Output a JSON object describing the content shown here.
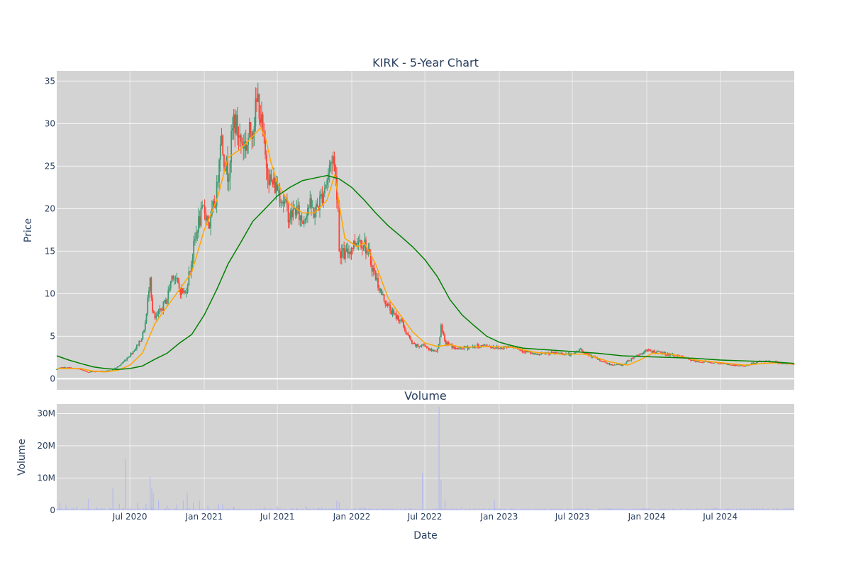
{
  "chart_data": [
    {
      "type": "candlestick",
      "title": "KIRK - 5-Year Chart",
      "ylabel": "Price",
      "xlabel": "",
      "ylim": [
        -1.3,
        36.2
      ],
      "yticks": [
        0,
        5,
        10,
        15,
        20,
        25,
        30,
        35
      ],
      "xlim": [
        "2020-01-02",
        "2024-12-31"
      ],
      "colors": {
        "up": "#3d9970",
        "down": "#ff4136",
        "ma_short": "#ffa500",
        "ma_long": "#008000",
        "plot_bg": "#d3d3d3",
        "grid": "#ebebeb"
      },
      "price_path": [
        [
          "2020-01-02",
          1.1
        ],
        [
          "2020-01-15",
          1.3
        ],
        [
          "2020-02-01",
          1.3
        ],
        [
          "2020-02-15",
          1.2
        ],
        [
          "2020-03-01",
          1.1
        ],
        [
          "2020-03-15",
          0.8
        ],
        [
          "2020-04-01",
          0.85
        ],
        [
          "2020-04-15",
          0.9
        ],
        [
          "2020-05-01",
          0.85
        ],
        [
          "2020-05-15",
          1.0
        ],
        [
          "2020-06-01",
          1.4
        ],
        [
          "2020-06-15",
          2.0
        ],
        [
          "2020-07-01",
          2.8
        ],
        [
          "2020-07-15",
          3.6
        ],
        [
          "2020-08-01",
          5.0
        ],
        [
          "2020-08-10",
          7.0
        ],
        [
          "2020-08-20",
          12.5
        ],
        [
          "2020-08-25",
          8.0
        ],
        [
          "2020-09-01",
          7.0
        ],
        [
          "2020-09-15",
          8.0
        ],
        [
          "2020-10-01",
          9.5
        ],
        [
          "2020-10-15",
          12.5
        ],
        [
          "2020-11-01",
          10.5
        ],
        [
          "2020-11-15",
          10.0
        ],
        [
          "2020-12-01",
          14.0
        ],
        [
          "2020-12-15",
          18.0
        ],
        [
          "2021-01-01",
          20.0
        ],
        [
          "2021-01-15",
          18.0
        ],
        [
          "2021-02-01",
          22.0
        ],
        [
          "2021-02-10",
          29.0
        ],
        [
          "2021-02-20",
          26.0
        ],
        [
          "2021-03-01",
          24.0
        ],
        [
          "2021-03-15",
          30.5
        ],
        [
          "2021-04-01",
          28.0
        ],
        [
          "2021-04-15",
          27.5
        ],
        [
          "2021-05-01",
          30.0
        ],
        [
          "2021-05-15",
          33.0
        ],
        [
          "2021-06-01",
          26.0
        ],
        [
          "2021-06-15",
          23.0
        ],
        [
          "2021-07-01",
          22.5
        ],
        [
          "2021-07-15",
          21.0
        ],
        [
          "2021-08-01",
          19.0
        ],
        [
          "2021-08-15",
          20.0
        ],
        [
          "2021-09-01",
          18.5
        ],
        [
          "2021-09-15",
          20.5
        ],
        [
          "2021-10-01",
          19.5
        ],
        [
          "2021-10-15",
          21.0
        ],
        [
          "2021-11-01",
          23.5
        ],
        [
          "2021-11-15",
          26.5
        ],
        [
          "2021-11-29",
          20.5
        ],
        [
          "2021-12-01",
          15.0
        ],
        [
          "2021-12-15",
          14.5
        ],
        [
          "2022-01-01",
          15.5
        ],
        [
          "2022-01-15",
          16.5
        ],
        [
          "2022-02-01",
          16.0
        ],
        [
          "2022-02-15",
          14.0
        ],
        [
          "2022-03-01",
          12.0
        ],
        [
          "2022-03-15",
          10.0
        ],
        [
          "2022-04-01",
          8.5
        ],
        [
          "2022-04-15",
          7.5
        ],
        [
          "2022-05-01",
          7.0
        ],
        [
          "2022-05-15",
          5.5
        ],
        [
          "2022-06-01",
          4.0
        ],
        [
          "2022-06-15",
          3.8
        ],
        [
          "2022-07-01",
          4.0
        ],
        [
          "2022-07-15",
          3.3
        ],
        [
          "2022-08-01",
          3.4
        ],
        [
          "2022-08-10",
          6.0
        ],
        [
          "2022-08-20",
          4.2
        ],
        [
          "2022-09-01",
          4.0
        ],
        [
          "2022-09-15",
          3.5
        ],
        [
          "2022-10-01",
          3.6
        ],
        [
          "2022-11-01",
          3.8
        ],
        [
          "2022-12-01",
          3.9
        ],
        [
          "2023-01-01",
          3.6
        ],
        [
          "2023-02-01",
          3.9
        ],
        [
          "2023-03-01",
          3.3
        ],
        [
          "2023-04-01",
          2.8
        ],
        [
          "2023-05-01",
          3.0
        ],
        [
          "2023-06-01",
          3.0
        ],
        [
          "2023-07-01",
          2.8
        ],
        [
          "2023-07-20",
          3.5
        ],
        [
          "2023-08-01",
          3.0
        ],
        [
          "2023-09-01",
          2.3
        ],
        [
          "2023-10-01",
          1.7
        ],
        [
          "2023-11-01",
          1.6
        ],
        [
          "2023-12-01",
          2.6
        ],
        [
          "2024-01-01",
          3.3
        ],
        [
          "2024-02-01",
          3.1
        ],
        [
          "2024-03-01",
          2.8
        ],
        [
          "2024-04-01",
          2.5
        ],
        [
          "2024-05-01",
          2.0
        ],
        [
          "2024-06-01",
          2.0
        ],
        [
          "2024-07-01",
          1.8
        ],
        [
          "2024-08-01",
          1.6
        ],
        [
          "2024-09-01",
          1.5
        ],
        [
          "2024-10-01",
          2.0
        ],
        [
          "2024-11-01",
          2.1
        ],
        [
          "2024-12-01",
          1.8
        ],
        [
          "2024-12-31",
          1.7
        ]
      ],
      "series": [
        {
          "type": "line",
          "color": "#ffa500",
          "points": [
            [
              "2020-01-02",
              1.2
            ],
            [
              "2020-03-01",
              1.2
            ],
            [
              "2020-04-01",
              0.9
            ],
            [
              "2020-05-01",
              0.8
            ],
            [
              "2020-06-01",
              1.0
            ],
            [
              "2020-07-01",
              1.6
            ],
            [
              "2020-08-01",
              3.0
            ],
            [
              "2020-09-01",
              6.5
            ],
            [
              "2020-10-01",
              8.5
            ],
            [
              "2020-11-01",
              10.5
            ],
            [
              "2020-12-01",
              12.5
            ],
            [
              "2021-01-01",
              17.5
            ],
            [
              "2021-02-01",
              21.0
            ],
            [
              "2021-03-01",
              26.0
            ],
            [
              "2021-04-01",
              27.0
            ],
            [
              "2021-05-01",
              28.5
            ],
            [
              "2021-05-20",
              29.5
            ],
            [
              "2021-06-01",
              28.5
            ],
            [
              "2021-06-15",
              25.5
            ],
            [
              "2021-07-01",
              23.0
            ],
            [
              "2021-08-01",
              20.5
            ],
            [
              "2021-09-01",
              19.5
            ],
            [
              "2021-10-01",
              19.5
            ],
            [
              "2021-11-01",
              21.0
            ],
            [
              "2021-11-20",
              24.0
            ],
            [
              "2021-12-01",
              20.5
            ],
            [
              "2021-12-15",
              16.5
            ],
            [
              "2022-01-15",
              15.5
            ],
            [
              "2022-02-01",
              16.0
            ],
            [
              "2022-03-01",
              13.5
            ],
            [
              "2022-04-01",
              9.5
            ],
            [
              "2022-05-01",
              7.5
            ],
            [
              "2022-06-01",
              5.5
            ],
            [
              "2022-07-01",
              4.2
            ],
            [
              "2022-08-01",
              3.8
            ],
            [
              "2022-09-01",
              4.0
            ],
            [
              "2022-10-01",
              3.7
            ],
            [
              "2022-12-01",
              3.8
            ],
            [
              "2023-02-01",
              3.7
            ],
            [
              "2023-04-01",
              3.1
            ],
            [
              "2023-06-01",
              2.9
            ],
            [
              "2023-08-01",
              2.9
            ],
            [
              "2023-10-01",
              2.0
            ],
            [
              "2023-11-15",
              1.6
            ],
            [
              "2023-12-15",
              2.2
            ],
            [
              "2024-01-15",
              3.0
            ],
            [
              "2024-03-01",
              2.9
            ],
            [
              "2024-05-01",
              2.2
            ],
            [
              "2024-07-01",
              1.9
            ],
            [
              "2024-09-01",
              1.6
            ],
            [
              "2024-10-15",
              1.8
            ],
            [
              "2024-12-01",
              1.9
            ],
            [
              "2024-12-31",
              1.7
            ]
          ]
        },
        {
          "type": "line",
          "color": "#008000",
          "points": [
            [
              "2020-01-02",
              2.7
            ],
            [
              "2020-02-01",
              2.2
            ],
            [
              "2020-03-01",
              1.8
            ],
            [
              "2020-04-01",
              1.4
            ],
            [
              "2020-05-01",
              1.2
            ],
            [
              "2020-06-01",
              1.1
            ],
            [
              "2020-07-01",
              1.2
            ],
            [
              "2020-08-01",
              1.5
            ],
            [
              "2020-09-01",
              2.3
            ],
            [
              "2020-10-01",
              3.0
            ],
            [
              "2020-11-01",
              4.2
            ],
            [
              "2020-12-01",
              5.2
            ],
            [
              "2021-01-01",
              7.5
            ],
            [
              "2021-02-01",
              10.5
            ],
            [
              "2021-03-01",
              13.5
            ],
            [
              "2021-04-01",
              16.0
            ],
            [
              "2021-05-01",
              18.5
            ],
            [
              "2021-06-01",
              20.0
            ],
            [
              "2021-07-01",
              21.5
            ],
            [
              "2021-08-01",
              22.5
            ],
            [
              "2021-09-01",
              23.3
            ],
            [
              "2021-10-01",
              23.6
            ],
            [
              "2021-11-01",
              23.9
            ],
            [
              "2021-12-01",
              23.5
            ],
            [
              "2022-01-01",
              22.5
            ],
            [
              "2022-02-01",
              21.0
            ],
            [
              "2022-03-01",
              19.5
            ],
            [
              "2022-04-01",
              18.0
            ],
            [
              "2022-05-01",
              16.8
            ],
            [
              "2022-06-01",
              15.5
            ],
            [
              "2022-07-01",
              14.0
            ],
            [
              "2022-08-01",
              12.0
            ],
            [
              "2022-09-01",
              9.3
            ],
            [
              "2022-10-01",
              7.5
            ],
            [
              "2022-11-01",
              6.2
            ],
            [
              "2022-12-01",
              5.0
            ],
            [
              "2023-01-01",
              4.3
            ],
            [
              "2023-02-01",
              3.9
            ],
            [
              "2023-03-01",
              3.6
            ],
            [
              "2023-05-01",
              3.4
            ],
            [
              "2023-07-01",
              3.2
            ],
            [
              "2023-09-01",
              3.0
            ],
            [
              "2023-11-01",
              2.7
            ],
            [
              "2024-01-01",
              2.6
            ],
            [
              "2024-03-01",
              2.5
            ],
            [
              "2024-05-01",
              2.4
            ],
            [
              "2024-07-01",
              2.2
            ],
            [
              "2024-09-01",
              2.1
            ],
            [
              "2024-11-01",
              2.0
            ],
            [
              "2024-12-31",
              1.8
            ]
          ]
        }
      ]
    },
    {
      "type": "bar",
      "title": "Volume",
      "ylabel": "Volume",
      "xlabel": "Date",
      "ylim": [
        0,
        32964000
      ],
      "yticks": [
        0,
        10000000,
        20000000,
        30000000
      ],
      "ytick_labels": [
        "0",
        "10M",
        "20M",
        "30M"
      ],
      "xticks": [
        "2020-07-01",
        "2021-01-01",
        "2021-07-01",
        "2022-01-01",
        "2022-07-01",
        "2023-01-01",
        "2023-07-01",
        "2024-01-01",
        "2024-07-01"
      ],
      "xtick_labels": [
        "Jul 2020",
        "Jan 2021",
        "Jul 2021",
        "Jan 2022",
        "Jul 2022",
        "Jan 2023",
        "Jul 2023",
        "Jan 2024",
        "Jul 2024"
      ],
      "bar_color": "#b4b9ec",
      "baseline_volume": 500000,
      "spikes": [
        [
          "2020-01-10",
          2200000
        ],
        [
          "2020-01-25",
          1500000
        ],
        [
          "2020-02-20",
          1000000
        ],
        [
          "2020-03-20",
          3500000
        ],
        [
          "2020-04-10",
          900000
        ],
        [
          "2020-05-20",
          7000000
        ],
        [
          "2020-06-05",
          2000000
        ],
        [
          "2020-06-20",
          16000000
        ],
        [
          "2020-07-20",
          2400000
        ],
        [
          "2020-08-10",
          2000000
        ],
        [
          "2020-08-20",
          10500000
        ],
        [
          "2020-08-24",
          7000000
        ],
        [
          "2020-08-28",
          5500000
        ],
        [
          "2020-09-10",
          3000000
        ],
        [
          "2020-10-01",
          1500000
        ],
        [
          "2020-10-25",
          1800000
        ],
        [
          "2020-11-10",
          3000000
        ],
        [
          "2020-11-20",
          5500000
        ],
        [
          "2020-12-05",
          2500000
        ],
        [
          "2020-12-20",
          3000000
        ],
        [
          "2021-01-10",
          1500000
        ],
        [
          "2021-02-05",
          2000000
        ],
        [
          "2021-02-15",
          1800000
        ],
        [
          "2021-03-15",
          1200000
        ],
        [
          "2021-06-01",
          1000000
        ],
        [
          "2021-07-01",
          1200000
        ],
        [
          "2021-09-10",
          1300000
        ],
        [
          "2021-10-20",
          900000
        ],
        [
          "2021-11-25",
          3000000
        ],
        [
          "2021-12-01",
          2500000
        ],
        [
          "2022-02-01",
          900000
        ],
        [
          "2022-06-25",
          11500000
        ],
        [
          "2022-08-05",
          32000000
        ],
        [
          "2022-08-10",
          9500000
        ],
        [
          "2022-08-20",
          3000000
        ],
        [
          "2022-10-01",
          900000
        ],
        [
          "2022-12-20",
          3000000
        ],
        [
          "2024-06-20",
          1000000
        ]
      ]
    }
  ]
}
